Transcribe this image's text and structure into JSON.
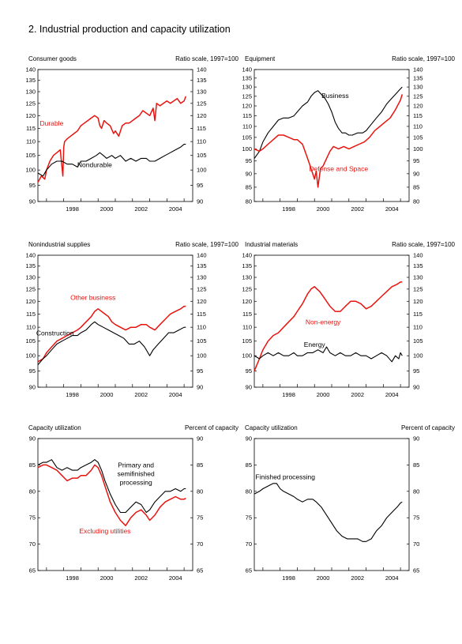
{
  "figure": {
    "title": "2.  Industrial production and capacity utilization"
  },
  "colors": {
    "red": "#e8140f",
    "black": "#000000"
  },
  "chart_data": [
    {
      "type": "line",
      "panel_title": "Consumer goods",
      "scale_label": "Ratio scale, 1997=100",
      "ylim": [
        90,
        140
      ],
      "yticks": [
        90,
        95,
        100,
        105,
        110,
        115,
        120,
        125,
        130,
        135,
        140
      ],
      "xlim": [
        1996.5,
        2005.5
      ],
      "xticks": [
        "1998",
        "2000",
        "2002",
        "2004"
      ],
      "series": [
        {
          "name": "Durable",
          "color": "#e8140f",
          "label_at": [
            1997.3,
            116
          ],
          "x": [
            1996.5,
            1996.7,
            1996.9,
            1997.0,
            1997.2,
            1997.4,
            1997.6,
            1997.8,
            1997.95,
            1998.0,
            1998.05,
            1998.2,
            1998.4,
            1998.6,
            1998.8,
            1999.0,
            1999.2,
            1999.4,
            1999.6,
            1999.8,
            2000.0,
            2000.1,
            2000.2,
            2000.35,
            2000.5,
            2000.7,
            2000.9,
            2001.0,
            2001.2,
            2001.4,
            2001.6,
            2001.8,
            2002.0,
            2002.2,
            2002.4,
            2002.6,
            2002.8,
            2003.0,
            2003.2,
            2003.3,
            2003.4,
            2003.6,
            2003.8,
            2004.0,
            2004.2,
            2004.4,
            2004.6,
            2004.8,
            2005.0,
            2005.1
          ],
          "y": [
            96,
            98,
            97,
            100,
            103,
            105,
            106,
            107,
            98,
            108,
            110,
            111,
            112,
            113,
            114,
            116,
            117,
            118,
            119,
            120,
            119,
            116,
            115,
            118,
            117,
            116,
            113,
            114,
            112,
            116,
            117,
            117,
            118,
            119,
            120,
            122,
            121,
            120,
            123,
            118,
            125,
            124,
            125,
            126,
            125,
            126,
            127,
            125,
            126,
            128
          ]
        },
        {
          "name": "Nondurable",
          "color": "#000000",
          "label_at": [
            1999.8,
            101
          ],
          "x": [
            1996.5,
            1996.8,
            1997.0,
            1997.3,
            1997.6,
            1997.9,
            1998.2,
            1998.5,
            1998.8,
            1999.0,
            1999.3,
            1999.6,
            1999.9,
            2000.1,
            2000.3,
            2000.5,
            2000.8,
            2001.0,
            2001.3,
            2001.6,
            2001.9,
            2002.2,
            2002.5,
            2002.8,
            2003.0,
            2003.3,
            2003.6,
            2003.9,
            2004.2,
            2004.5,
            2004.8,
            2005.0,
            2005.1
          ],
          "y": [
            99,
            98,
            100,
            102,
            103,
            103,
            102,
            102,
            101,
            103,
            103,
            104,
            105,
            106,
            105,
            104,
            105,
            104,
            105,
            103,
            104,
            103,
            104,
            104,
            103,
            103,
            104,
            105,
            106,
            107,
            108,
            109,
            109
          ]
        }
      ]
    },
    {
      "type": "line",
      "panel_title": "Equipment",
      "scale_label": "Ratio scale, 1997=100",
      "ylim": [
        80,
        140
      ],
      "yticks": [
        80,
        85,
        90,
        95,
        100,
        105,
        110,
        115,
        120,
        125,
        130,
        135,
        140
      ],
      "xlim": [
        1996.5,
        2005.5
      ],
      "xticks": [
        "1998",
        "2000",
        "2002",
        "2004"
      ],
      "series": [
        {
          "name": "Business",
          "color": "#000000",
          "label_at": [
            2001.2,
            124
          ],
          "x": [
            1996.5,
            1996.8,
            1997.0,
            1997.3,
            1997.6,
            1997.9,
            1998.2,
            1998.5,
            1998.8,
            1999.0,
            1999.3,
            1999.6,
            1999.8,
            2000.0,
            2000.2,
            2000.4,
            2000.6,
            2000.8,
            2001.0,
            2001.2,
            2001.4,
            2001.6,
            2001.8,
            2002.0,
            2002.2,
            2002.5,
            2002.8,
            2003.0,
            2003.3,
            2003.6,
            2003.9,
            2004.2,
            2004.5,
            2004.8,
            2005.0,
            2005.1
          ],
          "y": [
            96,
            99,
            103,
            107,
            110,
            113,
            114,
            114,
            115,
            117,
            120,
            122,
            125,
            127,
            128,
            126,
            124,
            121,
            117,
            112,
            109,
            107,
            107,
            106,
            106,
            107,
            107,
            108,
            111,
            114,
            117,
            121,
            124,
            127,
            129,
            130
          ]
        },
        {
          "name": "Defense and Space",
          "color": "#e8140f",
          "label_at": [
            2001.4,
            91
          ],
          "x": [
            1996.5,
            1996.8,
            1997.0,
            1997.3,
            1997.6,
            1997.9,
            1998.2,
            1998.5,
            1998.8,
            1999.0,
            1999.3,
            1999.5,
            1999.7,
            1999.9,
            2000.0,
            2000.1,
            2000.2,
            2000.35,
            2000.5,
            2000.7,
            2000.9,
            2001.1,
            2001.4,
            2001.7,
            2002.0,
            2002.3,
            2002.6,
            2002.9,
            2003.2,
            2003.5,
            2003.8,
            2004.1,
            2004.4,
            2004.7,
            2005.0,
            2005.1
          ],
          "y": [
            100,
            99,
            100,
            102,
            104,
            106,
            106,
            105,
            104,
            104,
            102,
            98,
            94,
            90,
            88,
            91,
            85,
            92,
            93,
            96,
            99,
            101,
            100,
            101,
            100,
            101,
            102,
            103,
            105,
            108,
            110,
            112,
            114,
            118,
            123,
            126
          ]
        }
      ]
    },
    {
      "type": "line",
      "panel_title": "Nonindustrial supplies",
      "scale_label": "Ratio scale, 1997=100",
      "ylim": [
        90,
        140
      ],
      "yticks": [
        90,
        95,
        100,
        105,
        110,
        115,
        120,
        125,
        130,
        135,
        140
      ],
      "xlim": [
        1996.5,
        2005.5
      ],
      "xticks": [
        "1998",
        "2000",
        "2002",
        "2004"
      ],
      "series": [
        {
          "name": "Other business",
          "color": "#e8140f",
          "label_at": [
            1999.7,
            120.5
          ],
          "x": [
            1996.5,
            1996.8,
            1997.0,
            1997.3,
            1997.6,
            1997.9,
            1998.2,
            1998.5,
            1998.8,
            1999.0,
            1999.3,
            1999.6,
            1999.8,
            2000.0,
            2000.2,
            2000.4,
            2000.6,
            2000.8,
            2001.0,
            2001.3,
            2001.6,
            2001.9,
            2002.2,
            2002.5,
            2002.8,
            2003.0,
            2003.3,
            2003.6,
            2003.9,
            2004.2,
            2004.5,
            2004.8,
            2005.0,
            2005.1
          ],
          "y": [
            98,
            99,
            101,
            103,
            105,
            106,
            107,
            108,
            109,
            110,
            112,
            114,
            116,
            117,
            116,
            115,
            114,
            112,
            111,
            110,
            109,
            110,
            110,
            111,
            111,
            110,
            109,
            111,
            113,
            115,
            116,
            117,
            118,
            118
          ]
        },
        {
          "name": "Construction",
          "color": "#000000",
          "label_at": [
            1997.5,
            107
          ],
          "x": [
            1996.5,
            1996.8,
            1997.0,
            1997.3,
            1997.6,
            1997.9,
            1998.2,
            1998.5,
            1998.8,
            1999.0,
            1999.3,
            1999.6,
            1999.8,
            2000.0,
            2000.3,
            2000.6,
            2000.9,
            2001.2,
            2001.5,
            2001.8,
            2002.1,
            2002.4,
            2002.7,
            2003.0,
            2003.2,
            2003.5,
            2003.8,
            2004.1,
            2004.4,
            2004.7,
            2005.0,
            2005.1
          ],
          "y": [
            97,
            99,
            100,
            102,
            104,
            105,
            106,
            107,
            107,
            108,
            109,
            111,
            112,
            111,
            110,
            109,
            108,
            107,
            106,
            104,
            104,
            105,
            103,
            100,
            102,
            104,
            106,
            108,
            108,
            109,
            110,
            110
          ]
        }
      ]
    },
    {
      "type": "line",
      "panel_title": "Industrial materials",
      "scale_label": "Ratio scale, 1997=100",
      "ylim": [
        90,
        140
      ],
      "yticks": [
        90,
        95,
        100,
        105,
        110,
        115,
        120,
        125,
        130,
        135,
        140
      ],
      "xlim": [
        1996.5,
        2005.5
      ],
      "xticks": [
        "1998",
        "2000",
        "2002",
        "2004"
      ],
      "series": [
        {
          "name": "Non-energy",
          "color": "#e8140f",
          "label_at": [
            2000.5,
            111
          ],
          "x": [
            1996.5,
            1996.8,
            1997.0,
            1997.3,
            1997.6,
            1997.9,
            1998.2,
            1998.5,
            1998.8,
            1999.0,
            1999.3,
            1999.6,
            1999.8,
            2000.0,
            2000.3,
            2000.6,
            2000.9,
            2001.2,
            2001.5,
            2001.8,
            2002.1,
            2002.4,
            2002.7,
            2003.0,
            2003.3,
            2003.6,
            2003.9,
            2004.2,
            2004.5,
            2004.8,
            2005.0,
            2005.1
          ],
          "y": [
            95,
            99,
            102,
            105,
            107,
            108,
            110,
            112,
            114,
            116,
            119,
            123,
            125,
            126,
            124,
            121,
            118,
            116,
            116,
            118,
            120,
            120,
            119,
            117,
            118,
            120,
            122,
            124,
            126,
            127,
            128,
            128
          ]
        },
        {
          "name": "Energy",
          "color": "#000000",
          "label_at": [
            2000.0,
            103
          ],
          "x": [
            1996.5,
            1996.8,
            1997.0,
            1997.3,
            1997.6,
            1997.9,
            1998.2,
            1998.5,
            1998.8,
            1999.0,
            1999.3,
            1999.6,
            1999.9,
            2000.2,
            2000.5,
            2000.7,
            2000.9,
            2001.2,
            2001.5,
            2001.8,
            2002.1,
            2002.4,
            2002.7,
            2003.0,
            2003.3,
            2003.6,
            2003.9,
            2004.2,
            2004.5,
            2004.7,
            2004.9,
            2005.0,
            2005.1
          ],
          "y": [
            100,
            99,
            100,
            101,
            100,
            101,
            100,
            100,
            101,
            100,
            100,
            101,
            101,
            102,
            101,
            103,
            101,
            100,
            101,
            100,
            100,
            101,
            100,
            100,
            99,
            100,
            101,
            100,
            98,
            100,
            99,
            101,
            100
          ]
        }
      ]
    },
    {
      "type": "line",
      "panel_title": "Capacity utilization",
      "scale_label": "Percent of capacity",
      "ylim": [
        65,
        90
      ],
      "yticks": [
        65,
        70,
        75,
        80,
        85,
        90
      ],
      "xlim": [
        1996.5,
        2005.5
      ],
      "xticks": [
        "1998",
        "2000",
        "2002",
        "2004"
      ],
      "annotation_lines": [
        "Primary and",
        "semifinished",
        "processing"
      ],
      "series": [
        {
          "name": "Primary and semifinished processing",
          "color": "#000000",
          "label_at": [
            2002.2,
            84.5
          ],
          "x": [
            1996.5,
            1996.8,
            1997.0,
            1997.3,
            1997.6,
            1997.9,
            1998.2,
            1998.5,
            1998.8,
            1999.0,
            1999.3,
            1999.6,
            1999.8,
            2000.0,
            2000.2,
            2000.4,
            2000.7,
            2001.0,
            2001.3,
            2001.6,
            2001.9,
            2002.2,
            2002.5,
            2002.8,
            2003.0,
            2003.3,
            2003.6,
            2003.9,
            2004.2,
            2004.5,
            2004.8,
            2005.0,
            2005.1
          ],
          "y": [
            85,
            85.5,
            85.5,
            86,
            84.5,
            84,
            84.5,
            84,
            84,
            84.5,
            85,
            85.5,
            86,
            85.5,
            84,
            82,
            79.5,
            77.5,
            76,
            76,
            77,
            78,
            77.5,
            76,
            76.5,
            78,
            79,
            80,
            80,
            80.5,
            80,
            80.5,
            80.5
          ]
        },
        {
          "name": "Excluding utilities",
          "color": "#e8140f",
          "label_at": [
            2000.4,
            72
          ],
          "x": [
            1996.5,
            1996.8,
            1997.0,
            1997.3,
            1997.6,
            1997.9,
            1998.2,
            1998.5,
            1998.8,
            1999.0,
            1999.3,
            1999.6,
            1999.8,
            2000.0,
            2000.2,
            2000.4,
            2000.7,
            2001.0,
            2001.3,
            2001.6,
            2001.9,
            2002.2,
            2002.5,
            2002.8,
            2003.0,
            2003.3,
            2003.6,
            2003.9,
            2004.2,
            2004.5,
            2004.8,
            2005.0,
            2005.1
          ],
          "y": [
            84.5,
            85,
            85,
            84.5,
            84,
            83,
            82,
            82.5,
            82.5,
            83,
            83,
            84,
            85,
            84.5,
            83,
            81,
            78,
            76,
            74.5,
            73.5,
            75,
            76,
            76.5,
            75.5,
            74.5,
            75.5,
            77,
            78,
            78.5,
            79,
            78.5,
            78.5,
            78.7
          ]
        }
      ]
    },
    {
      "type": "line",
      "panel_title": "Capacity utilization",
      "scale_label": "Percent of capacity",
      "ylim": [
        65,
        90
      ],
      "yticks": [
        65,
        70,
        75,
        80,
        85,
        90
      ],
      "xlim": [
        1996.5,
        2005.5
      ],
      "xticks": [
        "1998",
        "2000",
        "2002",
        "2004"
      ],
      "series": [
        {
          "name": "Finished processing",
          "color": "#000000",
          "label_at": [
            1998.3,
            82.3
          ],
          "x": [
            1996.5,
            1996.8,
            1997.0,
            1997.3,
            1997.6,
            1997.8,
            1998.0,
            1998.2,
            1998.5,
            1998.8,
            1999.0,
            1999.3,
            1999.6,
            1999.9,
            2000.1,
            2000.4,
            2000.7,
            2001.0,
            2001.3,
            2001.6,
            2001.9,
            2002.2,
            2002.5,
            2002.8,
            2003.0,
            2003.3,
            2003.6,
            2003.9,
            2004.2,
            2004.5,
            2004.8,
            2005.0,
            2005.1
          ],
          "y": [
            79.5,
            80,
            80.5,
            81,
            81.5,
            81.5,
            80.5,
            80,
            79.5,
            79,
            78.5,
            78,
            78.5,
            78.5,
            78,
            77,
            75.5,
            74,
            72.5,
            71.5,
            71,
            71,
            71,
            70.5,
            70.5,
            71,
            72.5,
            73.5,
            75,
            76,
            77,
            77.8,
            78
          ]
        }
      ]
    }
  ]
}
